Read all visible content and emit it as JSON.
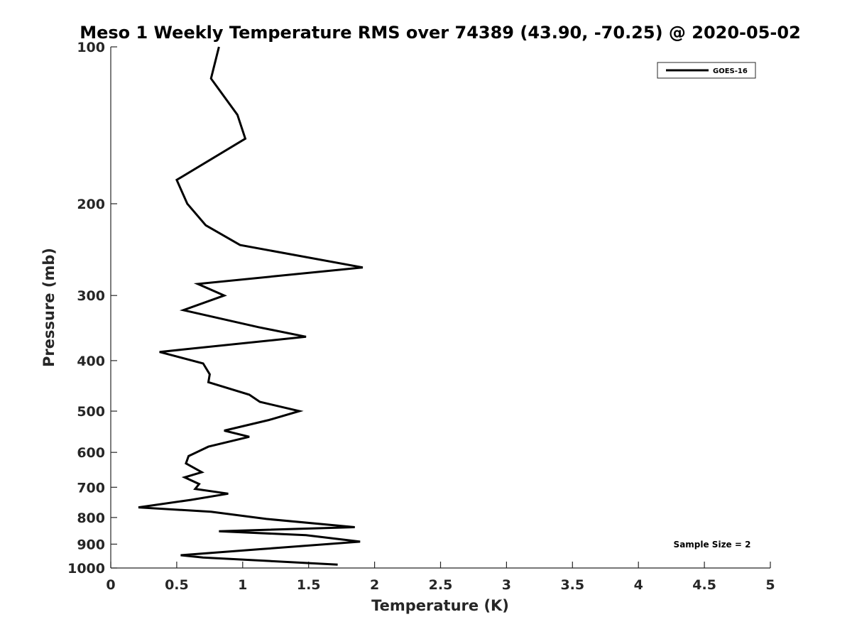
{
  "chart_data": {
    "type": "line",
    "title": "Meso 1 Weekly Temperature RMS over 74389 (43.90, -70.25) @ 2020-05-02",
    "xlabel": "Temperature (K)",
    "ylabel": "Pressure (mb)",
    "xlim": [
      0,
      5
    ],
    "ylim": [
      100,
      1000
    ],
    "y_scale": "log",
    "y_reversed": true,
    "grid": false,
    "legend_position": "top-right",
    "x_ticks": [
      0,
      0.5,
      1,
      1.5,
      2,
      2.5,
      3,
      3.5,
      4,
      4.5,
      5
    ],
    "x_tick_labels": [
      "0",
      "0.5",
      "1",
      "1.5",
      "2",
      "2.5",
      "3",
      "3.5",
      "4",
      "4.5",
      "5"
    ],
    "y_ticks": [
      100,
      200,
      300,
      400,
      500,
      600,
      700,
      800,
      900,
      1000
    ],
    "y_tick_labels": [
      "100",
      "200",
      "300",
      "400",
      "500",
      "600",
      "700",
      "800",
      "900",
      "1000"
    ],
    "annotation": "Sample Size = 2",
    "series": [
      {
        "name": "GOES-16",
        "color": "#000000",
        "points": [
          [
            0.82,
            100
          ],
          [
            0.76,
            115
          ],
          [
            0.96,
            135
          ],
          [
            1.02,
            150
          ],
          [
            0.5,
            180
          ],
          [
            0.58,
            200
          ],
          [
            0.72,
            220
          ],
          [
            0.98,
            240
          ],
          [
            1.91,
            265
          ],
          [
            0.66,
            285
          ],
          [
            0.86,
            300
          ],
          [
            0.55,
            320
          ],
          [
            1.12,
            345
          ],
          [
            1.48,
            360
          ],
          [
            0.37,
            385
          ],
          [
            0.7,
            405
          ],
          [
            0.75,
            425
          ],
          [
            0.74,
            440
          ],
          [
            1.05,
            465
          ],
          [
            1.13,
            480
          ],
          [
            1.43,
            500
          ],
          [
            1.2,
            520
          ],
          [
            0.86,
            545
          ],
          [
            1.05,
            560
          ],
          [
            0.74,
            585
          ],
          [
            0.59,
            610
          ],
          [
            0.57,
            630
          ],
          [
            0.69,
            655
          ],
          [
            0.56,
            670
          ],
          [
            0.67,
            690
          ],
          [
            0.64,
            705
          ],
          [
            0.89,
            720
          ],
          [
            0.61,
            740
          ],
          [
            0.21,
            765
          ],
          [
            0.76,
            780
          ],
          [
            1.18,
            805
          ],
          [
            1.85,
            835
          ],
          [
            0.82,
            850
          ],
          [
            1.48,
            865
          ],
          [
            1.89,
            890
          ],
          [
            1.14,
            920
          ],
          [
            0.53,
            945
          ],
          [
            0.7,
            955
          ],
          [
            1.72,
            985
          ]
        ]
      }
    ]
  }
}
